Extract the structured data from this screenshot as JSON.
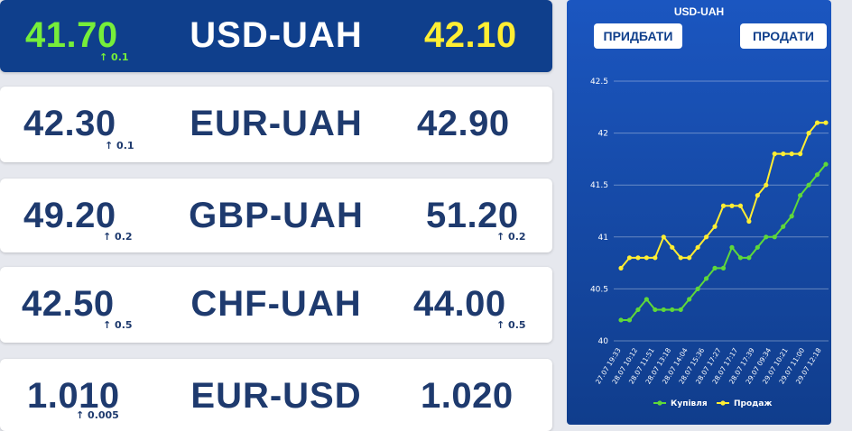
{
  "rates": [
    {
      "pair": "USD-UAH",
      "buy": "41.70",
      "buy_delta": "↑ 0.1",
      "sell": "42.10",
      "sell_delta": ""
    },
    {
      "pair": "EUR-UAH",
      "buy": "42.30",
      "buy_delta": "↑ 0.1",
      "sell": "42.90",
      "sell_delta": ""
    },
    {
      "pair": "GBP-UAH",
      "buy": "49.20",
      "buy_delta": "↑ 0.2",
      "sell": "51.20",
      "sell_delta": "↑ 0.2"
    },
    {
      "pair": "CHF-UAH",
      "buy": "42.50",
      "buy_delta": "↑ 0.5",
      "sell": "44.00",
      "sell_delta": "↑ 0.5"
    },
    {
      "pair": "EUR-USD",
      "buy": "1.010",
      "buy_delta": "↑ 0.005",
      "sell": "1.020",
      "sell_delta": ""
    }
  ],
  "colors": {
    "active_bg": "#0f3f8c",
    "buy_accent": "#76ee3a",
    "sell_accent": "#ffee33",
    "text_dark": "#1e3a6e"
  },
  "chart_panel": {
    "title": "USD-UAH",
    "buy_button": "ПРИДБАТИ",
    "sell_button": "ПРОДАТИ"
  },
  "chart_data": {
    "type": "line",
    "title": "USD-UAH",
    "xlabel": "",
    "ylabel": "",
    "ylim": [
      40,
      42.5
    ],
    "yticks": [
      "40",
      "40.5",
      "41",
      "41.5",
      "42",
      "42.5"
    ],
    "grid": true,
    "legend_position": "bottom",
    "x_tick_labels": [
      "27.07 19:33",
      "28.07 10:12",
      "28.07 11:51",
      "28.07 13:18",
      "28.07 14:04",
      "28.07 15:36",
      "28.07 17:27",
      "28.07 17:17",
      "28.07 17:39",
      "29.07 09:34",
      "29.07 10:21",
      "29.07 11:00",
      "29.07 12:18"
    ],
    "series": [
      {
        "name": "Купівля",
        "color": "#5fd83a",
        "values": [
          40.2,
          40.2,
          40.3,
          40.4,
          40.3,
          40.3,
          40.3,
          40.3,
          40.4,
          40.5,
          40.6,
          40.7,
          40.7,
          40.9,
          40.8,
          40.8,
          40.9,
          41.0,
          41.0,
          41.1,
          41.2,
          41.4,
          41.5,
          41.6,
          41.7
        ]
      },
      {
        "name": "Продаж",
        "color": "#ffee33",
        "values": [
          40.7,
          40.8,
          40.8,
          40.8,
          40.8,
          41.0,
          40.9,
          40.8,
          40.8,
          40.9,
          41.0,
          41.1,
          41.3,
          41.3,
          41.3,
          41.15,
          41.4,
          41.5,
          41.8,
          41.8,
          41.8,
          41.8,
          42.0,
          42.1,
          42.1
        ]
      }
    ]
  }
}
